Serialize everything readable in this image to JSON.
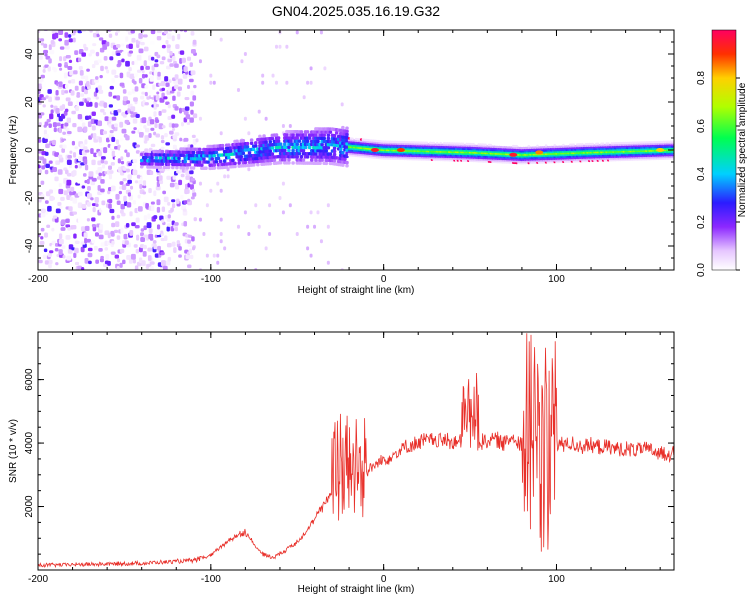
{
  "title": "GN04.2025.035.16.19.G32",
  "chart_data": [
    {
      "type": "heatmap",
      "name": "spectrogram",
      "xlabel": "Height of straight line (km)",
      "ylabel": "Frequency (Hz)",
      "xlim": [
        -200,
        168
      ],
      "ylim": [
        -50,
        50
      ],
      "xticks": [
        -200,
        -100,
        0,
        100
      ],
      "yticks": [
        -40,
        -20,
        0,
        20,
        40
      ],
      "colorbar": {
        "label": "Normalized spectral amplitude",
        "range": [
          0,
          1
        ],
        "ticks": [
          0.0,
          0.2,
          0.4,
          0.6,
          0.8
        ],
        "tick_labels": [
          "0.0",
          "0.2",
          "0.4",
          "0.6",
          "0.8"
        ]
      },
      "description_regions": [
        {
          "x_range": [
            -200,
            -110
          ],
          "freq_range": [
            -50,
            50
          ],
          "amplitude": [
            0.0,
            0.2
          ],
          "note": "scattered noise"
        },
        {
          "x_range": [
            -140,
            -20
          ],
          "freq_range": [
            -8,
            10
          ],
          "amplitude": [
            0.1,
            0.4
          ],
          "note": "broadening band"
        },
        {
          "x_range": [
            -20,
            168
          ],
          "freq_range": [
            -3,
            3
          ],
          "amplitude": [
            0.2,
            1.0
          ],
          "note": "narrow carrier line"
        }
      ],
      "band_center_points": [
        {
          "x": -140,
          "freq": -4
        },
        {
          "x": -100,
          "freq": -3
        },
        {
          "x": -60,
          "freq": 1
        },
        {
          "x": -30,
          "freq": 2
        },
        {
          "x": 0,
          "freq": 0
        },
        {
          "x": 50,
          "freq": -1
        },
        {
          "x": 80,
          "freq": -2
        },
        {
          "x": 120,
          "freq": -1
        },
        {
          "x": 168,
          "freq": 0
        }
      ],
      "peak_points": [
        {
          "x": -5,
          "freq": 0,
          "amp": 0.95
        },
        {
          "x": 10,
          "freq": 0,
          "amp": 0.9
        },
        {
          "x": 75,
          "freq": -2,
          "amp": 0.95
        },
        {
          "x": 90,
          "freq": -1,
          "amp": 0.85
        },
        {
          "x": 160,
          "freq": 0,
          "amp": 0.8
        }
      ]
    },
    {
      "type": "line",
      "name": "snr",
      "xlabel": "Height of straight line (km)",
      "ylabel": "SNR (10 * v/v)",
      "xlim": [
        -200,
        168
      ],
      "ylim": [
        0,
        7500
      ],
      "xticks": [
        -200,
        -100,
        0,
        100
      ],
      "yticks": [
        2000,
        4000,
        6000
      ],
      "color": "#e8302a",
      "series": [
        {
          "name": "SNR",
          "x": [
            -200,
            -190,
            -180,
            -170,
            -160,
            -150,
            -140,
            -130,
            -120,
            -110,
            -100,
            -95,
            -90,
            -85,
            -80,
            -75,
            -70,
            -65,
            -60,
            -55,
            -50,
            -45,
            -40,
            -35,
            -30,
            -25,
            -20,
            -15,
            -10,
            -5,
            0,
            5,
            10,
            15,
            20,
            25,
            30,
            35,
            40,
            45,
            50,
            55,
            60,
            65,
            70,
            75,
            80,
            85,
            90,
            95,
            100,
            105,
            110,
            120,
            130,
            140,
            150,
            160,
            168
          ],
          "y": [
            150,
            160,
            170,
            180,
            190,
            200,
            210,
            240,
            270,
            300,
            450,
            700,
            900,
            1100,
            1200,
            800,
            500,
            400,
            500,
            700,
            900,
            1200,
            1600,
            2000,
            2500,
            3000,
            3100,
            2900,
            3100,
            3300,
            3500,
            3600,
            3800,
            3900,
            4000,
            4100,
            4050,
            4100,
            4050,
            4000,
            4100,
            4000,
            4100,
            4100,
            4000,
            4200,
            4000,
            4000,
            4000,
            4000,
            3900,
            4000,
            3950,
            3900,
            3850,
            3800,
            3800,
            3700,
            3650
          ]
        }
      ],
      "spike_regions": [
        {
          "x_range": [
            -30,
            -10
          ],
          "y_range": [
            1500,
            5000
          ]
        },
        {
          "x_range": [
            45,
            55
          ],
          "y_range": [
            3500,
            6200
          ]
        },
        {
          "x_range": [
            80,
            100
          ],
          "y_range": [
            400,
            7500
          ]
        }
      ]
    }
  ]
}
